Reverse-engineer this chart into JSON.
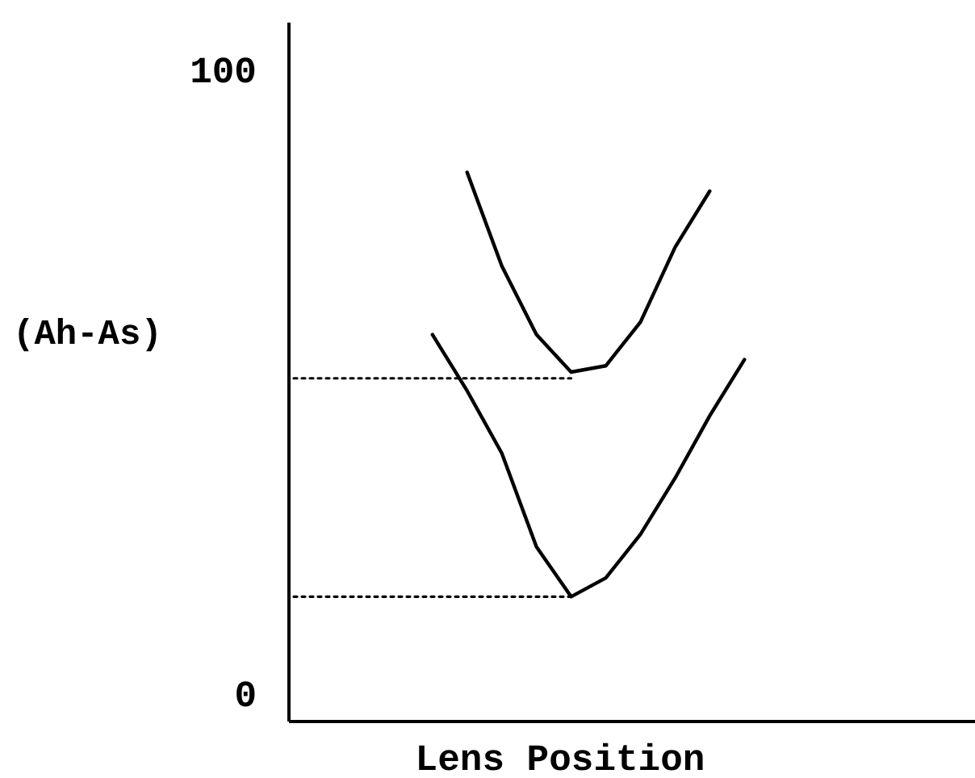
{
  "chart_data": {
    "type": "line",
    "xlabel": "Lens Position",
    "ylabel": "(Ah-As)",
    "categories": [
      null,
      null,
      null,
      null,
      null,
      null,
      null,
      null,
      null,
      null,
      null,
      null,
      null,
      null,
      null,
      null,
      null,
      null,
      null,
      null
    ],
    "ylim": [
      -4,
      108
    ],
    "yticks": [
      0,
      100
    ],
    "tick_labels": "y",
    "marker": "none",
    "series": [
      {
        "color": "#000000",
        "values": [
          null,
          null,
          null,
          null,
          null,
          84,
          69,
          58,
          52,
          53,
          60,
          72,
          81,
          null,
          null,
          null,
          null,
          null,
          null,
          null
        ]
      },
      {
        "color": "#000000",
        "values": [
          null,
          null,
          null,
          null,
          58,
          49,
          39,
          24,
          16,
          19,
          26,
          35,
          45,
          54,
          null,
          null,
          null,
          null,
          null,
          null
        ]
      },
      {
        "color": "#000000",
        "line_style": "dotted",
        "values": [
          51,
          51,
          51,
          51,
          51,
          51,
          51,
          51,
          51,
          null,
          null,
          null,
          null,
          null,
          null,
          null,
          null,
          null,
          null,
          null
        ]
      },
      {
        "color": "#000000",
        "line_style": "dotted",
        "values": [
          16,
          16,
          16,
          16,
          16,
          16,
          16,
          16,
          16,
          null,
          null,
          null,
          null,
          null,
          null,
          null,
          null,
          null,
          null,
          null
        ]
      }
    ]
  }
}
